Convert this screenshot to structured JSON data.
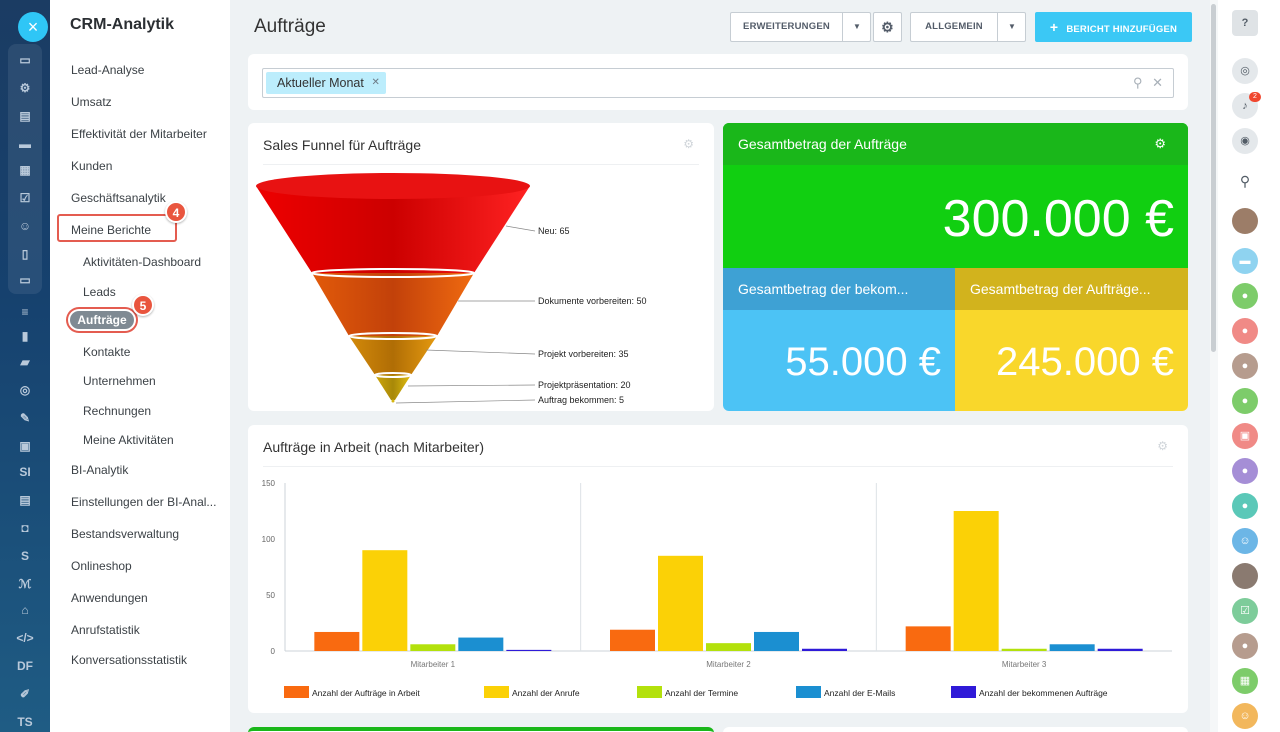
{
  "app": {
    "close_icon": "×"
  },
  "sidebar": {
    "title": "CRM-Analytik",
    "items": [
      {
        "label": "Lead-Analyse"
      },
      {
        "label": "Umsatz"
      },
      {
        "label": "Effektivität der Mitarbeiter"
      },
      {
        "label": "Kunden"
      },
      {
        "label": "Geschäftsanalytik"
      },
      {
        "label": "Meine Berichte"
      },
      {
        "label": "Aktivitäten-Dashboard"
      },
      {
        "label": "Leads"
      },
      {
        "label": "Aufträge"
      },
      {
        "label": "Kontakte"
      },
      {
        "label": "Unternehmen"
      },
      {
        "label": "Rechnungen"
      },
      {
        "label": "Meine Aktivitäten"
      },
      {
        "label": "BI-Analytik"
      },
      {
        "label": "Einstellungen der BI-Anal..."
      },
      {
        "label": "Bestandsverwaltung"
      },
      {
        "label": "Onlineshop"
      },
      {
        "label": "Anwendungen"
      },
      {
        "label": "Anrufstatistik"
      },
      {
        "label": "Konversationsstatistik"
      }
    ],
    "badge_1": "4",
    "badge_2": "5"
  },
  "rail": {
    "labels": [
      "SI",
      "S",
      "DF",
      "TS"
    ]
  },
  "header": {
    "title": "Aufträge",
    "btn_erweiterungen": "ERWEITERUNGEN",
    "btn_allgemein": "ALLGEMEIN",
    "btn_add": "BERICHT HINZUFÜGEN",
    "plus": "+"
  },
  "filter": {
    "chip": "Aktueller Monat"
  },
  "funnel": {
    "title": "Sales Funnel für Aufträge",
    "stages": [
      {
        "label": "Neu: 65"
      },
      {
        "label": "Dokumente vorbereiten: 50"
      },
      {
        "label": "Projekt vorbereiten: 35"
      },
      {
        "label": "Projektpräsentation: 20"
      },
      {
        "label": "Auftrag bekommen: 5"
      }
    ]
  },
  "totals": {
    "title": "Gesamtbetrag der Aufträge",
    "value": "300.000 €",
    "received_title": "Gesamtbetrag der bekom...",
    "received_value": "55.000 €",
    "orders_title": "Gesamtbetrag der Aufträge...",
    "orders_value": "245.000 €",
    "colors": {
      "green_head": "#1ab71a",
      "green": "#11cf11",
      "blue_head": "#3ea1d4",
      "blue": "#4cc3f5",
      "yellow_head": "#d2b31d",
      "yellow": "#f9d72b"
    }
  },
  "bar_card": {
    "title": "Aufträge in Arbeit (nach Mitarbeiter)"
  },
  "chart_data": {
    "type": "bar",
    "title": "Aufträge in Arbeit (nach Mitarbeiter)",
    "categories": [
      "Mitarbeiter 1",
      "Mitarbeiter 2",
      "Mitarbeiter 3"
    ],
    "series": [
      {
        "name": "Anzahl der Aufträge in Arbeit",
        "color": "#f96a10",
        "values": [
          17,
          19,
          22
        ]
      },
      {
        "name": "Anzahl der Anrufe",
        "color": "#fbd106",
        "values": [
          90,
          85,
          125
        ]
      },
      {
        "name": "Anzahl der Termine",
        "color": "#b3e10c",
        "values": [
          6,
          7,
          2
        ]
      },
      {
        "name": "Anzahl der E-Mails",
        "color": "#1b8fd1",
        "values": [
          12,
          17,
          6
        ]
      },
      {
        "name": "Anzahl der bekommenen Aufträge",
        "color": "#2f1ad8",
        "values": [
          1,
          2,
          2
        ]
      }
    ],
    "ylim": [
      0,
      150
    ],
    "yticks": [
      "0",
      "50",
      "100",
      "150"
    ],
    "legend": "bottom"
  }
}
